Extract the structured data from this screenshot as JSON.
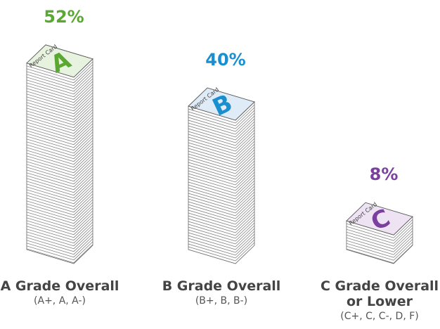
{
  "chart_data": {
    "type": "pictogram",
    "categories": [
      "A Grade Overall",
      "B Grade Overall",
      "C Grade Overall or Lower"
    ],
    "subtitles": [
      "(A+, A, A-)",
      "(B+, B, B-)",
      "(C+, C, C-, D, F)"
    ],
    "values": [
      52,
      40,
      8
    ],
    "value_labels": [
      "52%",
      "40%",
      "8%"
    ],
    "colors": [
      "#5aa832",
      "#1a8fd0",
      "#7b3fa0"
    ],
    "card_text": "Report Card",
    "card_letters": [
      "A",
      "B",
      "C"
    ]
  }
}
